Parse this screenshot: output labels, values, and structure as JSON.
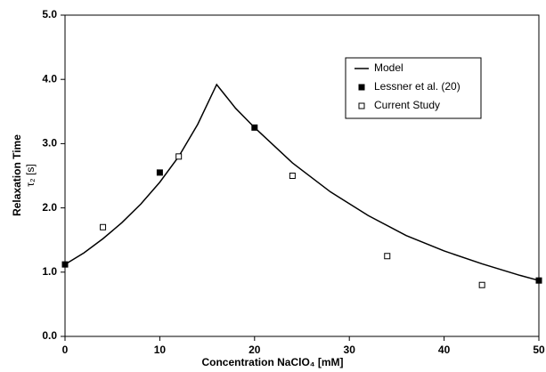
{
  "chart_data": {
    "type": "scatter",
    "xlabel": "Concentration NaClO₄ [mM]",
    "ylabel": [
      "Relaxation Time",
      "τ₂ [s]"
    ],
    "xlim": [
      0,
      50
    ],
    "xticks": [
      0,
      10,
      20,
      30,
      40,
      50
    ],
    "ylim": [
      0,
      5
    ],
    "yticks": [
      {
        "value": 0,
        "label": "0.0"
      },
      {
        "value": 1,
        "label": "1.0"
      },
      {
        "value": 2,
        "label": "2.0"
      },
      {
        "value": 3,
        "label": "3.0"
      },
      {
        "value": 4,
        "label": "4.0"
      },
      {
        "value": 5,
        "label": "5.0"
      }
    ],
    "legend": "upper right",
    "series": [
      {
        "name": "Model",
        "color": "#000000",
        "mode": "line",
        "x": [
          0,
          2,
          4,
          6,
          8,
          10,
          12,
          14,
          16,
          18,
          20,
          24,
          28,
          32,
          36,
          40,
          44,
          48,
          50
        ],
        "values": [
          1.12,
          1.3,
          1.52,
          1.77,
          2.06,
          2.4,
          2.8,
          3.3,
          3.92,
          3.55,
          3.25,
          2.7,
          2.25,
          1.88,
          1.57,
          1.33,
          1.13,
          0.95,
          0.87
        ]
      },
      {
        "name": "Lessner et al. (20)",
        "color": "#000000",
        "mode": "filled-square",
        "x": [
          0,
          10,
          20,
          50
        ],
        "values": [
          1.12,
          2.55,
          3.25,
          0.87
        ]
      },
      {
        "name": "Current Study",
        "color": "#000000",
        "mode": "open-square",
        "x": [
          4,
          12,
          24,
          34,
          44
        ],
        "values": [
          1.7,
          2.8,
          2.5,
          1.25,
          0.8
        ]
      }
    ]
  }
}
